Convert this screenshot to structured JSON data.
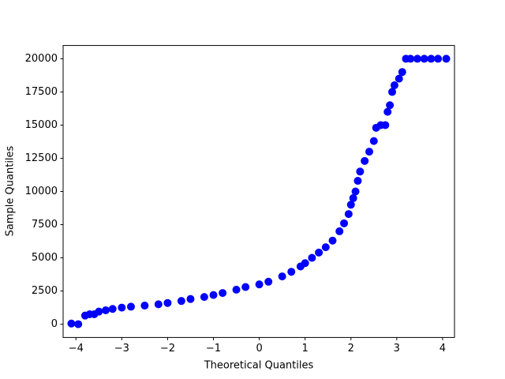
{
  "chart_data": {
    "type": "scatter",
    "x_label": "Theoretical Quantiles",
    "y_label": "Sample Quantiles",
    "color": "#0000ff",
    "x": [
      -4.1,
      -3.95,
      -3.8,
      -3.7,
      -3.6,
      -3.5,
      -3.35,
      -3.2,
      -3.0,
      -2.8,
      -2.5,
      -2.2,
      -2.0,
      -1.7,
      -1.5,
      -1.2,
      -1.0,
      -0.8,
      -0.5,
      -0.3,
      0.0,
      0.2,
      0.5,
      0.7,
      0.9,
      1.0,
      1.15,
      1.3,
      1.45,
      1.6,
      1.75,
      1.85,
      1.95,
      2.0,
      2.05,
      2.1,
      2.15,
      2.2,
      2.3,
      2.4,
      2.5,
      2.55,
      2.65,
      2.75,
      2.8,
      2.85,
      2.9,
      2.95,
      3.05,
      3.12,
      3.2,
      3.3,
      3.45,
      3.6,
      3.75,
      3.9,
      4.08
    ],
    "values": [
      50,
      0,
      650,
      750,
      750,
      950,
      1050,
      1150,
      1250,
      1320,
      1400,
      1500,
      1600,
      1750,
      1900,
      2050,
      2200,
      2350,
      2600,
      2800,
      3000,
      3200,
      3600,
      3950,
      4350,
      4600,
      5000,
      5400,
      5800,
      6300,
      7000,
      7600,
      8300,
      9000,
      9500,
      10000,
      10800,
      11500,
      12300,
      13000,
      13800,
      14800,
      15000,
      15000,
      16000,
      16500,
      17500,
      18000,
      18500,
      19000,
      20000,
      20000,
      20000,
      20000,
      20000,
      20000,
      20000
    ],
    "xlim": [
      -4.28,
      4.26
    ],
    "ylim": [
      -1000,
      21000
    ],
    "xticks": [
      {
        "value": -4,
        "label": "−4"
      },
      {
        "value": -3,
        "label": "−3"
      },
      {
        "value": -2,
        "label": "−2"
      },
      {
        "value": -1,
        "label": "−1"
      },
      0,
      1,
      2,
      3,
      4
    ],
    "yticks": [
      0,
      2500,
      5000,
      7500,
      10000,
      12500,
      15000,
      17500,
      20000
    ]
  }
}
